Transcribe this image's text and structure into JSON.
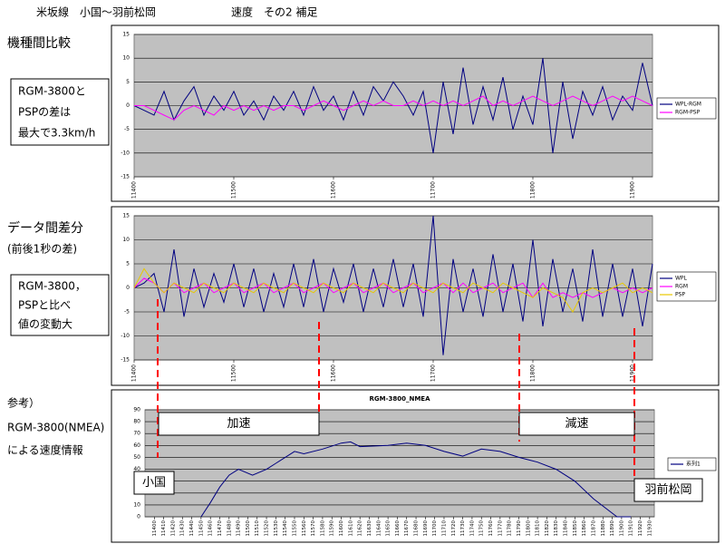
{
  "header": {
    "title": "米坂線　小国～羽前松岡",
    "subtitle": "速度　その2 補足"
  },
  "chart_data": [
    {
      "type": "line",
      "heading": "機種間比較",
      "note": [
        "RGM-3800と",
        "PSPの差は",
        "最大で3.3km/h"
      ],
      "x": [
        11400,
        11410,
        11420,
        11430,
        11440,
        11450,
        11460,
        11470,
        11480,
        11490,
        11500,
        11510,
        11520,
        11530,
        11540,
        11550,
        11560,
        11570,
        11580,
        11590,
        11600,
        11610,
        11620,
        11630,
        11640,
        11650,
        11660,
        11670,
        11680,
        11690,
        11700,
        11710,
        11720,
        11730,
        11740,
        11750,
        11760,
        11770,
        11780,
        11790,
        11800,
        11810,
        11820,
        11830,
        11840,
        11850,
        11860,
        11870,
        11880,
        11890,
        11900,
        11910,
        11920
      ],
      "xlim": [
        11400,
        11920
      ],
      "xticks": [
        11400,
        11500,
        11600,
        11700,
        11800,
        11900
      ],
      "ylim": [
        -15,
        15
      ],
      "yticks": [
        -15,
        -10,
        -5,
        0,
        5,
        10,
        15
      ],
      "grid": true,
      "series": [
        {
          "name": "WPL-RGM",
          "color": "#000080",
          "values": [
            0,
            -1,
            -2,
            3,
            -3,
            1,
            4,
            -2,
            2,
            -1,
            3,
            -2,
            1,
            -3,
            2,
            -1,
            3,
            -2,
            4,
            -1,
            2,
            -3,
            3,
            -2,
            4,
            1,
            5,
            2,
            -2,
            3,
            -10,
            5,
            -6,
            8,
            -4,
            4,
            -3,
            6,
            -5,
            2,
            -4,
            10,
            -10,
            5,
            -7,
            3,
            -2,
            4,
            -3,
            2,
            -1,
            9,
            0
          ]
        },
        {
          "name": "RGM-PSP",
          "color": "#ff00ff",
          "values": [
            0,
            0,
            -1,
            -2,
            -3,
            -1,
            0,
            -1,
            -2,
            0,
            -1,
            0,
            -1,
            0,
            -1,
            0,
            0,
            -1,
            0,
            1,
            0,
            -1,
            0,
            1,
            0,
            1,
            0,
            0,
            1,
            0,
            1,
            0,
            1,
            0,
            1,
            2,
            0,
            1,
            0,
            1,
            2,
            1,
            0,
            1,
            2,
            1,
            0,
            1,
            2,
            1,
            2,
            1,
            0
          ]
        }
      ]
    },
    {
      "type": "line",
      "heading": [
        "データ間差分",
        "(前後1秒の差)"
      ],
      "note": [
        "RGM-3800，",
        "PSPと比べ",
        "値の変動大"
      ],
      "x": [
        11400,
        11410,
        11420,
        11430,
        11440,
        11450,
        11460,
        11470,
        11480,
        11490,
        11500,
        11510,
        11520,
        11530,
        11540,
        11550,
        11560,
        11570,
        11580,
        11590,
        11600,
        11610,
        11620,
        11630,
        11640,
        11650,
        11660,
        11670,
        11680,
        11690,
        11700,
        11710,
        11720,
        11730,
        11740,
        11750,
        11760,
        11770,
        11780,
        11790,
        11800,
        11810,
        11820,
        11830,
        11840,
        11850,
        11860,
        11870,
        11880,
        11890,
        11900,
        11910,
        11920
      ],
      "xlim": [
        11400,
        11920
      ],
      "xticks": [
        11400,
        11500,
        11600,
        11700,
        11800,
        11900
      ],
      "ylim": [
        -15,
        15
      ],
      "yticks": [
        -15,
        -10,
        -5,
        0,
        5,
        10,
        15
      ],
      "grid": true,
      "series": [
        {
          "name": "WPL",
          "color": "#000080",
          "values": [
            0,
            1,
            3,
            -5,
            8,
            -6,
            4,
            -4,
            3,
            -3,
            5,
            -4,
            4,
            -5,
            3,
            -4,
            5,
            -4,
            6,
            -5,
            4,
            -3,
            5,
            -5,
            4,
            -4,
            6,
            -4,
            5,
            -6,
            15,
            -14,
            6,
            -5,
            4,
            -6,
            7,
            -5,
            5,
            -7,
            10,
            -8,
            6,
            -5,
            4,
            -7,
            8,
            -6,
            5,
            -6,
            4,
            -8,
            5
          ]
        },
        {
          "name": "RGM",
          "color": "#ff00ff",
          "values": [
            0,
            2,
            1,
            -1,
            1,
            -1,
            0,
            1,
            -1,
            0,
            1,
            -1,
            0,
            1,
            -1,
            0,
            1,
            -1,
            0,
            1,
            -1,
            0,
            1,
            -1,
            0,
            1,
            -1,
            0,
            1,
            -1,
            0,
            1,
            -1,
            1,
            -1,
            0,
            1,
            -1,
            0,
            1,
            -2,
            1,
            -2,
            -1,
            -2,
            -1,
            -2,
            -1,
            0,
            -1,
            0,
            -1,
            0
          ]
        },
        {
          "name": "PSP",
          "color": "#e8c800",
          "values": [
            0,
            4,
            1,
            -1,
            1,
            0,
            -1,
            1,
            0,
            -1,
            1,
            0,
            -1,
            1,
            0,
            -1,
            1,
            0,
            -1,
            1,
            0,
            -1,
            1,
            0,
            -1,
            1,
            0,
            -1,
            1,
            0,
            -1,
            1,
            0,
            -1,
            1,
            0,
            -1,
            1,
            0,
            -1,
            -2,
            0,
            -1,
            -2,
            -5,
            -1,
            0,
            -1,
            0,
            1,
            -1,
            0,
            -1
          ]
        }
      ]
    },
    {
      "type": "line",
      "title": "RGM-3800_NMEA",
      "heading": [
        "参考）",
        "RGM-3800(NMEA)",
        "による速度情報"
      ],
      "annotations": [
        "加速",
        "減速",
        "小国",
        "羽前松岡"
      ],
      "x": [
        11450,
        11460,
        11470,
        11480,
        11490,
        11505,
        11520,
        11530,
        11550,
        11560,
        11580,
        11600,
        11610,
        11620,
        11650,
        11670,
        11690,
        11710,
        11730,
        11750,
        11770,
        11790,
        11810,
        11830,
        11850,
        11870,
        11895,
        11910
      ],
      "xlim": [
        11390,
        11935
      ],
      "xticks": [
        11400,
        11410,
        11420,
        11430,
        11440,
        11450,
        11460,
        11470,
        11480,
        11490,
        11500,
        11510,
        11520,
        11530,
        11540,
        11550,
        11560,
        11570,
        11580,
        11590,
        11600,
        11610,
        11620,
        11630,
        11640,
        11650,
        11660,
        11670,
        11680,
        11690,
        11700,
        11710,
        11720,
        11730,
        11740,
        11750,
        11760,
        11770,
        11780,
        11790,
        11800,
        11810,
        11820,
        11830,
        11840,
        11850,
        11860,
        11870,
        11880,
        11890,
        11900,
        11910,
        11920,
        11930
      ],
      "ylim": [
        0,
        90
      ],
      "yticks": [
        0,
        10,
        20,
        30,
        40,
        50,
        60,
        70,
        80,
        90
      ],
      "grid": true,
      "series": [
        {
          "name": "系列1",
          "color": "#000080",
          "values": [
            0,
            12,
            25,
            35,
            40,
            35,
            40,
            45,
            55,
            53,
            57,
            62,
            63,
            59,
            60,
            62,
            60,
            55,
            51,
            57,
            55,
            50,
            46,
            40,
            30,
            15,
            0,
            0
          ]
        }
      ]
    }
  ]
}
